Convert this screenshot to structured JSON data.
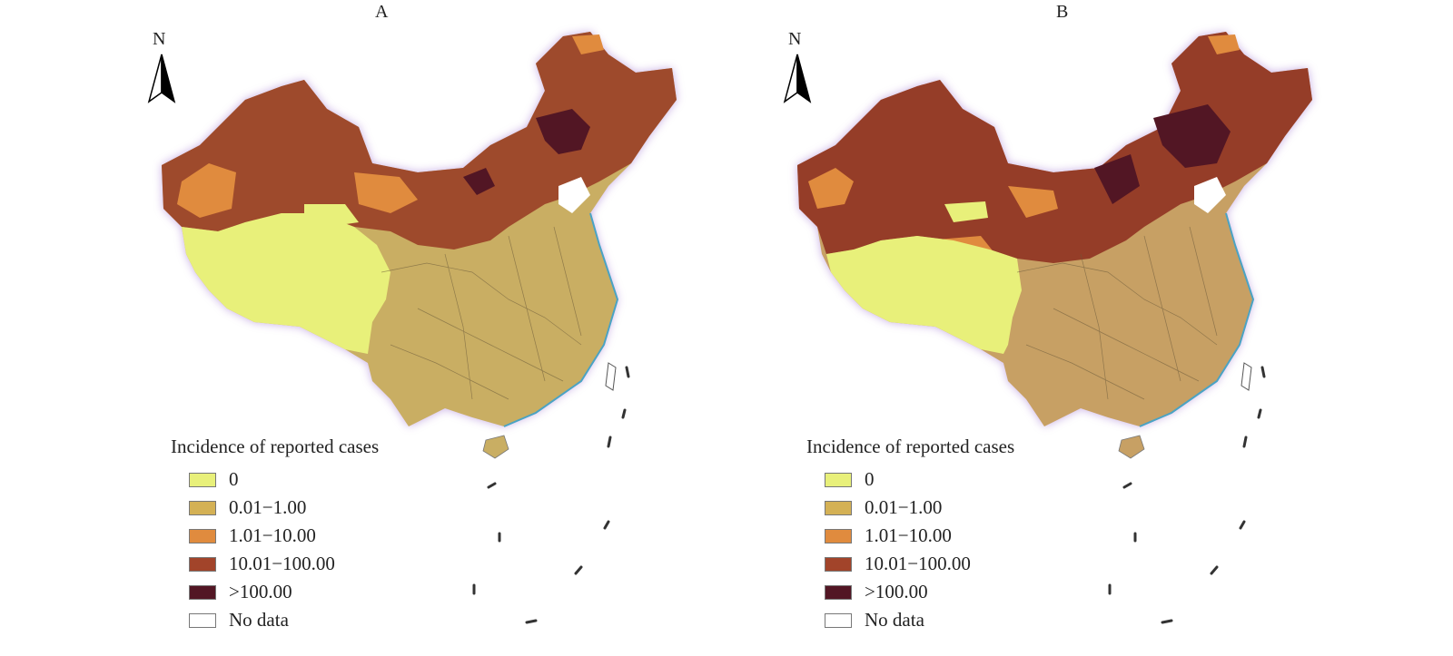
{
  "panels": [
    {
      "label": "A"
    },
    {
      "label": "B"
    }
  ],
  "north_arrow": {
    "letter": "N"
  },
  "legend": {
    "title": "Incidence of reported cases",
    "classes": [
      {
        "label": "0",
        "color": "#e8f07a"
      },
      {
        "label": "0.01−1.00",
        "color": "#d4b155"
      },
      {
        "label": "1.01−10.00",
        "color": "#e08b3e"
      },
      {
        "label": "10.01−100.00",
        "color": "#a2442a"
      },
      {
        "label": ">100.00",
        "color": "#521624"
      },
      {
        "label": "No data",
        "color": "#ffffff"
      }
    ]
  }
}
